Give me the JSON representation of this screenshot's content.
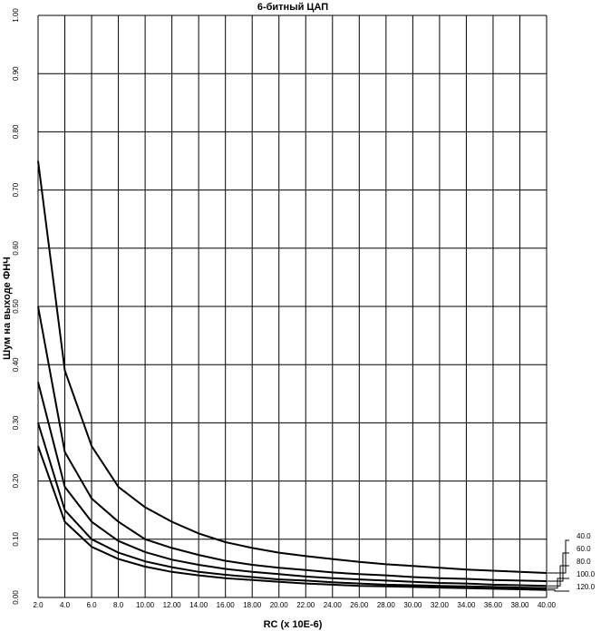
{
  "chart_data": {
    "type": "line",
    "title": "6-битный ЦАП",
    "xlabel": "RC (x 10E-6)",
    "ylabel": "Шум на выходе ФНЧ",
    "xlim": [
      2.0,
      40.0
    ],
    "ylim": [
      0.0,
      1.0
    ],
    "grid": true,
    "legend_position": "right",
    "x_ticks": [
      "2.0",
      "4.0",
      "6.0",
      "8.0",
      "10.00",
      "12.00",
      "14.00",
      "16.00",
      "18.00",
      "20.00",
      "22.00",
      "24.00",
      "26.00",
      "28.00",
      "30.00",
      "32.00",
      "34.00",
      "36.00",
      "38.00",
      "40.00"
    ],
    "y_ticks": [
      "0.00",
      "0.10",
      "0.20",
      "0.30",
      "0.40",
      "0.50",
      "0.60",
      "0.70",
      "0.80",
      "0.90",
      "1.00"
    ],
    "x": [
      2.0,
      4.0,
      6.0,
      8.0,
      10.0,
      12.0,
      14.0,
      16.0,
      18.0,
      20.0,
      22.0,
      24.0,
      26.0,
      28.0,
      30.0,
      32.0,
      34.0,
      36.0,
      38.0,
      40.0
    ],
    "series": [
      {
        "name": "40.0",
        "values": [
          0.75,
          0.39,
          0.26,
          0.19,
          0.155,
          0.13,
          0.11,
          0.095,
          0.085,
          0.077,
          0.071,
          0.066,
          0.061,
          0.057,
          0.054,
          0.051,
          0.048,
          0.046,
          0.044,
          0.042
        ]
      },
      {
        "name": "60.0",
        "values": [
          0.5,
          0.25,
          0.17,
          0.13,
          0.1,
          0.085,
          0.073,
          0.063,
          0.056,
          0.051,
          0.047,
          0.043,
          0.04,
          0.038,
          0.035,
          0.033,
          0.032,
          0.03,
          0.029,
          0.028
        ]
      },
      {
        "name": "80.0",
        "values": [
          0.37,
          0.19,
          0.13,
          0.097,
          0.078,
          0.065,
          0.056,
          0.049,
          0.044,
          0.04,
          0.036,
          0.033,
          0.031,
          0.029,
          0.027,
          0.025,
          0.024,
          0.022,
          0.021,
          0.02
        ]
      },
      {
        "name": "100.0",
        "values": [
          0.3,
          0.15,
          0.1,
          0.077,
          0.062,
          0.052,
          0.044,
          0.039,
          0.035,
          0.031,
          0.029,
          0.026,
          0.024,
          0.022,
          0.021,
          0.02,
          0.019,
          0.018,
          0.017,
          0.016
        ]
      },
      {
        "name": "120.0",
        "values": [
          0.26,
          0.13,
          0.087,
          0.066,
          0.053,
          0.044,
          0.038,
          0.033,
          0.03,
          0.027,
          0.024,
          0.022,
          0.02,
          0.019,
          0.018,
          0.017,
          0.016,
          0.015,
          0.014,
          0.013
        ]
      }
    ]
  }
}
